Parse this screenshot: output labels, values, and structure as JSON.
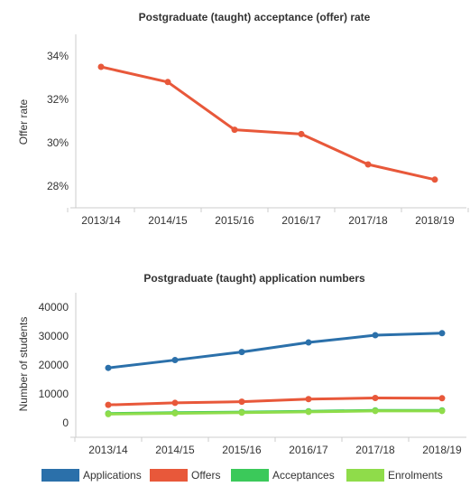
{
  "chart_data": [
    {
      "type": "line",
      "title": "Postgraduate (taught) acceptance (offer) rate",
      "xlabel": "",
      "ylabel": "Offer rate",
      "categories": [
        "2013/14",
        "2014/15",
        "2015/16",
        "2016/17",
        "2017/18",
        "2018/19"
      ],
      "y_ticks": [
        "34%",
        "32%",
        "30%",
        "28%"
      ],
      "y_tick_values": [
        34,
        32,
        30,
        28
      ],
      "ylim": [
        27,
        35
      ],
      "grid": false,
      "series": [
        {
          "values": [
            33.5,
            32.8,
            30.6,
            30.4,
            29.0,
            28.3
          ],
          "color": "#e8583a"
        }
      ]
    },
    {
      "type": "line",
      "title": "Postgraduate (taught) application numbers",
      "xlabel": "",
      "ylabel": "Number of students",
      "categories": [
        "2013/14",
        "2014/15",
        "2015/16",
        "2016/17",
        "2017/18",
        "2018/19"
      ],
      "y_ticks": [
        "40000",
        "30000",
        "20000",
        "10000",
        "0"
      ],
      "y_tick_values": [
        40000,
        30000,
        20000,
        10000,
        0
      ],
      "ylim": [
        -5000,
        45000
      ],
      "grid": false,
      "legend": "bottom",
      "series": [
        {
          "name": "Applications",
          "values": [
            19000,
            21700,
            24500,
            27800,
            30300,
            31000
          ],
          "color": "#2b70aa"
        },
        {
          "name": "Offers",
          "values": [
            6200,
            6900,
            7300,
            8200,
            8600,
            8500
          ],
          "color": "#e8583a"
        },
        {
          "name": "Acceptances",
          "values": [
            3200,
            3500,
            3700,
            4000,
            4300,
            4300
          ],
          "color": "#3bc95a"
        },
        {
          "name": "Enrolments",
          "values": [
            3000,
            3300,
            3500,
            3800,
            4100,
            4100
          ],
          "color": "#8fdc4a"
        }
      ]
    }
  ]
}
